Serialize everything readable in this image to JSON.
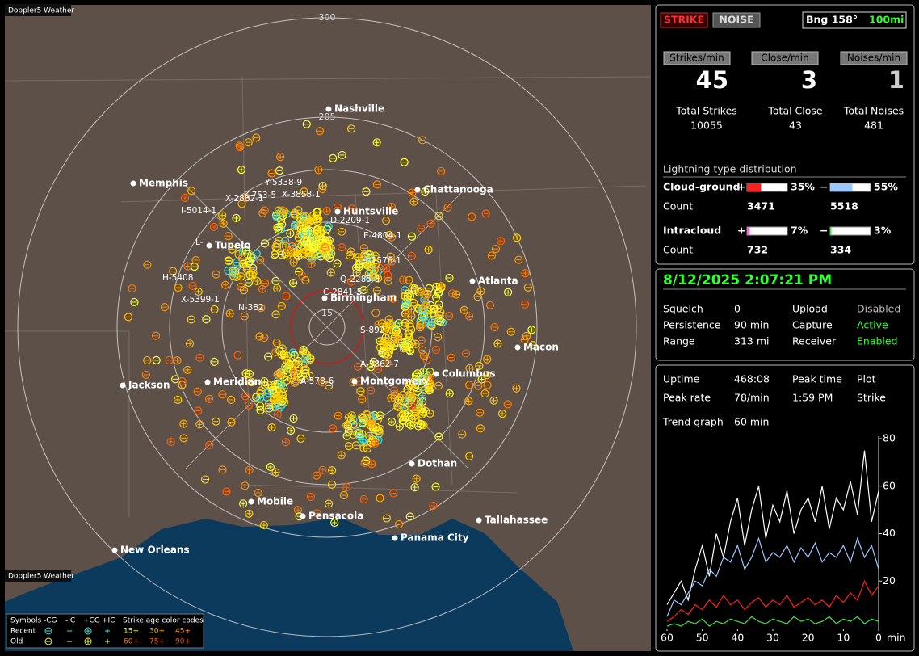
{
  "app": {
    "title": "Doppler5 Weather"
  },
  "map": {
    "ring_labels": [
      300,
      205,
      15
    ],
    "cities": [
      "Nashville",
      "Memphis",
      "Chattanooga",
      "Huntsville",
      "Tupelo",
      "Birmingham",
      "Atlanta",
      "Macon",
      "Jackson",
      "Meridian",
      "Montgomery",
      "Columbus",
      "Dothan",
      "Mobile",
      "Pensacola",
      "Tallahassee",
      "Panama City",
      "New Orleans"
    ],
    "storm_labels": [
      "Y-5338-9",
      "X-2882-1",
      "K-753-5",
      "X-3858-1",
      "I-5014-1",
      "D-2209-1",
      "L-",
      "E-4804-1",
      "H-1576-1",
      "H-5408",
      "Q-2285-3",
      "X-5399-1",
      "N-382",
      "C-2841-5",
      "S-892",
      "A-3862-7",
      "A-578-6"
    ],
    "legend": {
      "symbols_title": "Symbols",
      "columns": [
        "-CG",
        "-IC",
        "+CG",
        "+IC"
      ],
      "age_title": "Strike age color codes",
      "rows": [
        {
          "label": "Recent",
          "ages": [
            "15+",
            "30+",
            "45+"
          ]
        },
        {
          "label": "Old",
          "ages": [
            "60+",
            "75+",
            "90+"
          ]
        }
      ]
    }
  },
  "header": {
    "buttons": [
      "STRIKE",
      "NOISE"
    ],
    "bearing": "Bng 158°",
    "range": "100mi"
  },
  "rates": [
    {
      "label": "Strikes/min",
      "value": 45,
      "total_label": "Total Strikes",
      "total": 10055
    },
    {
      "label": "Close/min",
      "value": 3,
      "total_label": "Total Close",
      "total": 43
    },
    {
      "label": "Noises/min",
      "value": 1,
      "total_label": "Total Noises",
      "total": 481
    }
  ],
  "distribution": {
    "title": "Lightning type distribution",
    "count_label": "Count",
    "types": [
      {
        "name": "Cloud-ground",
        "positive": {
          "sign": "+",
          "percent": 35,
          "percent_label": "35%",
          "count": 3471
        },
        "negative": {
          "sign": "−",
          "percent": 55,
          "percent_label": "55%",
          "count": 5518
        }
      },
      {
        "name": "Intracloud",
        "positive": {
          "sign": "+",
          "percent": 7,
          "percent_label": "7%",
          "count": 732
        },
        "negative": {
          "sign": "−",
          "percent": 3,
          "percent_label": "3%",
          "count": 334
        }
      }
    ]
  },
  "status": {
    "datetime": "8/12/2025 2:07:21 PM",
    "rows": [
      [
        "Squelch",
        "0",
        "Upload",
        "Disabled"
      ],
      [
        "Persistence",
        "90 min",
        "Capture",
        "Active"
      ],
      [
        "Range",
        "313 mi",
        "Receiver",
        "Enabled"
      ]
    ]
  },
  "stats": {
    "rows": [
      [
        "Uptime",
        "468:08",
        "Peak time",
        "Plot"
      ],
      [
        "Peak rate",
        "78/min",
        "1:59 PM",
        "Strike"
      ],
      [
        "Trend graph",
        "60 min"
      ]
    ]
  },
  "trend_graph": {
    "type": "line",
    "x_label": "min",
    "xlim": [
      60,
      0
    ],
    "xticks": [
      60,
      50,
      40,
      30,
      20,
      10,
      0
    ],
    "ylim": [
      0,
      80
    ],
    "yticks": [
      20,
      40,
      60,
      80
    ],
    "x": [
      60,
      58,
      56,
      54,
      52,
      50,
      48,
      46,
      44,
      42,
      40,
      38,
      36,
      34,
      32,
      30,
      28,
      26,
      24,
      22,
      20,
      18,
      16,
      14,
      12,
      10,
      8,
      6,
      4,
      2,
      0
    ],
    "series": [
      {
        "color": "#ffffff",
        "values": [
          10,
          15,
          20,
          12,
          25,
          35,
          22,
          40,
          30,
          45,
          55,
          35,
          50,
          60,
          38,
          52,
          45,
          58,
          40,
          50,
          55,
          45,
          60,
          42,
          55,
          50,
          62,
          48,
          75,
          45,
          58
        ]
      },
      {
        "color": "#9cc8ff",
        "values": [
          5,
          12,
          10,
          15,
          20,
          18,
          25,
          22,
          30,
          28,
          35,
          25,
          30,
          38,
          28,
          32,
          30,
          35,
          28,
          34,
          30,
          36,
          28,
          32,
          30,
          35,
          28,
          38,
          30,
          35,
          25
        ]
      },
      {
        "color": "#ff2020",
        "values": [
          3,
          5,
          8,
          6,
          10,
          8,
          12,
          9,
          14,
          10,
          12,
          8,
          11,
          13,
          9,
          12,
          10,
          14,
          9,
          11,
          13,
          10,
          12,
          9,
          14,
          11,
          15,
          12,
          20,
          14,
          18
        ]
      },
      {
        "color": "#40e040",
        "values": [
          1,
          2,
          1,
          3,
          2,
          4,
          1,
          3,
          2,
          4,
          3,
          2,
          5,
          3,
          2,
          4,
          3,
          2,
          5,
          3,
          4,
          2,
          3,
          5,
          2,
          4,
          3,
          5,
          2,
          4,
          3
        ]
      }
    ]
  }
}
